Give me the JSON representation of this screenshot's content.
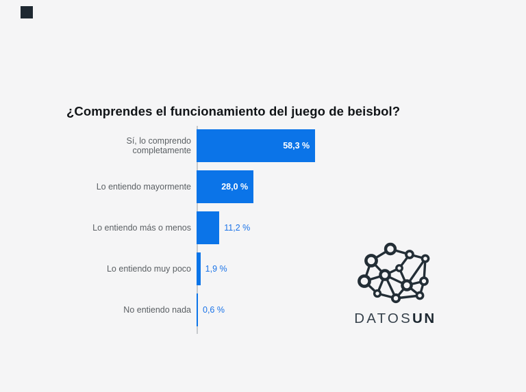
{
  "brand_mark_color": "#1e2831",
  "background_color": "#f5f5f6",
  "title": "¿Comprendes el funcionamiento del juego de beisbol?",
  "chart_data": {
    "type": "bar",
    "orientation": "horizontal",
    "title": "¿Comprendes el funcionamiento del juego de beisbol?",
    "categories": [
      "Sí, lo comprendo completamente",
      "Lo entiendo mayormente",
      "Lo entiendo más o menos",
      "Lo entiendo muy poco",
      "No entiendo nada"
    ],
    "values": [
      58.3,
      28.0,
      11.2,
      1.9,
      0.6
    ],
    "value_labels": [
      "58,3 %",
      "28,0 %",
      "11,2 %",
      "1,9 %",
      "0,6 %"
    ],
    "unit": "%",
    "xlim": [
      0,
      60
    ],
    "grid": false,
    "legend": "none",
    "bar_color": "#0b74e8",
    "value_label_color_inside": "#ffffff",
    "value_label_color_outside": "#1a73e8",
    "axis_line_color": "#c6c9cc"
  },
  "logo": {
    "brand_regular": "DATOS",
    "brand_bold": "UN",
    "icon": "network-graph-icon",
    "color": "#232e36"
  }
}
